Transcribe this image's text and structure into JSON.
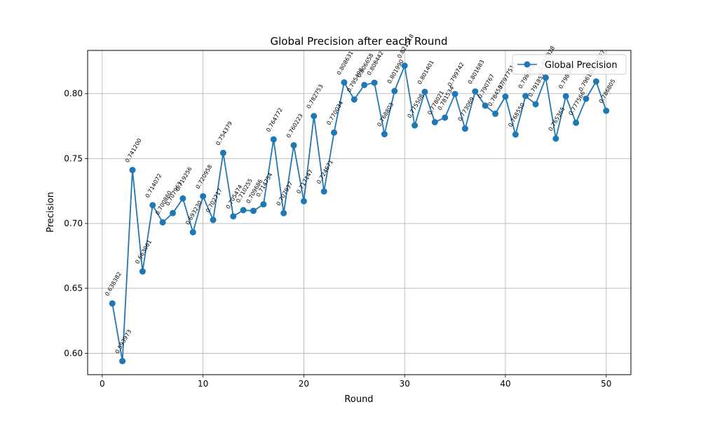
{
  "chart_data": {
    "type": "line",
    "title": "Global Precision after each Round",
    "xlabel": "Round",
    "ylabel": "Precision",
    "xlim": [
      -1.45,
      52.45
    ],
    "ylim": [
      0.5835,
      0.8333
    ],
    "xticks": [
      0,
      10,
      20,
      30,
      40,
      50
    ],
    "yticks": [
      0.6,
      0.65,
      0.7,
      0.75,
      0.8
    ],
    "xtick_labels": [
      "0",
      "10",
      "20",
      "30",
      "40",
      "50"
    ],
    "ytick_labels": [
      "0.60",
      "0.65",
      "0.70",
      "0.75",
      "0.80"
    ],
    "grid": true,
    "legend_position": "upper-right",
    "series": [
      {
        "name": "Global Precision",
        "color": "#1f77b4",
        "marker": "circle",
        "x": [
          1,
          2,
          3,
          4,
          5,
          6,
          7,
          8,
          9,
          10,
          11,
          12,
          13,
          14,
          15,
          16,
          17,
          18,
          19,
          20,
          21,
          22,
          23,
          24,
          25,
          26,
          27,
          28,
          29,
          30,
          31,
          32,
          33,
          34,
          35,
          36,
          37,
          38,
          39,
          40,
          41,
          42,
          43,
          44,
          45,
          46,
          47,
          48,
          49,
          50
        ],
        "y": [
          0.638382,
          0.593973,
          0.7412,
          0.663061,
          0.714072,
          0.70086,
          0.707963,
          0.719256,
          0.69323,
          0.720958,
          0.702717,
          0.754379,
          0.705474,
          0.710255,
          0.709686,
          0.714754,
          0.764772,
          0.707937,
          0.760223,
          0.717147,
          0.782753,
          0.724671,
          0.770034,
          0.808631,
          0.795498,
          0.806658,
          0.808442,
          0.768803,
          0.80199,
          0.821518,
          0.775508,
          0.801401,
          0.778021,
          0.781534,
          0.799742,
          0.773069,
          0.801683,
          0.790767,
          0.784537,
          0.797751,
          0.76855,
          0.798203,
          0.791857,
          0.812328,
          0.765365,
          0.798,
          0.777566,
          0.7961,
          0.809357,
          0.786805
        ],
        "point_labels": [
          "0.638382",
          "0.593973",
          "0.741200",
          "0.663061",
          "0.714072",
          "0.700860",
          "0.707963",
          "0.719256",
          "0.693230",
          "0.720958",
          "0.702717",
          "0.754379",
          "0.705474",
          "0.710255",
          "0.709686",
          "0.714754",
          "0.764772",
          "0.707937",
          "0.760223",
          "0.717147",
          "0.782753",
          "0.724671",
          "0.770034",
          "0.808631",
          "0.795498",
          "0.806658",
          "0.808442",
          "0.768803",
          "0.801990",
          "0.821518",
          "0.775508",
          "0.801401",
          "0.778021",
          "0.781534",
          "0.799742",
          "0.773069",
          "0.801683",
          "0.790767",
          "0.784537",
          "0.797751",
          "0.768550",
          "0.798203",
          "0.791857",
          "0.812328",
          "0.765365",
          "0.798000",
          "0.777566",
          "0.796100",
          "0.809357",
          "0.786805"
        ]
      }
    ]
  }
}
